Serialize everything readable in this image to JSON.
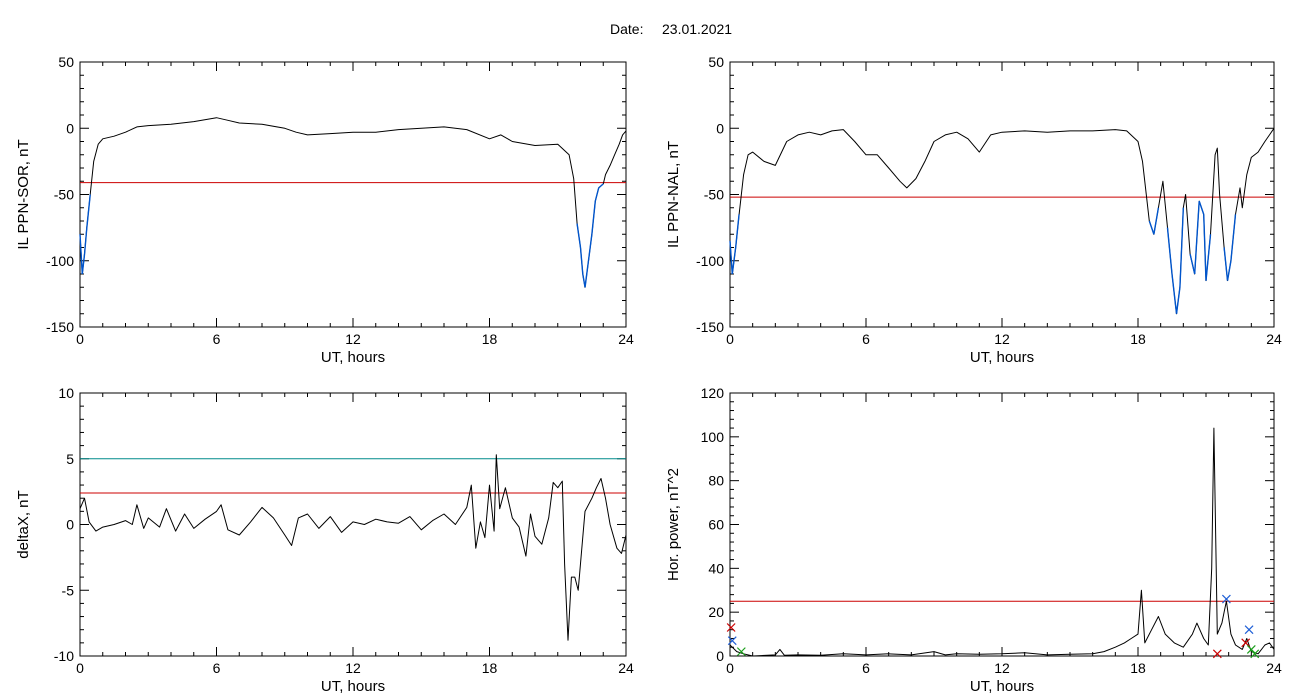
{
  "header": {
    "date_label": "Date:",
    "date_value": "23.01.2021"
  },
  "colors": {
    "trace": "#000000",
    "threshold": "#cc0000",
    "threshold2": "#008b8b",
    "excursion": "#0055cc",
    "marker_red": "#cc0000",
    "marker_blue": "#1f5fd6",
    "marker_green": "#1a9e1a"
  },
  "chart_data": [
    {
      "type": "line",
      "xlabel": "UT, hours",
      "ylabel": "IL PPN-SOR, nT",
      "xlim": [
        0,
        24
      ],
      "ylim": [
        -150,
        50
      ],
      "xticks": [
        0,
        6,
        12,
        18,
        24
      ],
      "yticks": [
        50,
        0,
        -50,
        -100,
        -150
      ],
      "thresholds": [
        {
          "value": -41,
          "color": "red"
        }
      ],
      "highlight_below_threshold": true,
      "series": [
        {
          "points": [
            [
              0,
              -80
            ],
            [
              0.1,
              -110
            ],
            [
              0.2,
              -95
            ],
            [
              0.3,
              -75
            ],
            [
              0.45,
              -50
            ],
            [
              0.6,
              -25
            ],
            [
              0.8,
              -12
            ],
            [
              1.0,
              -8
            ],
            [
              1.5,
              -6
            ],
            [
              2.0,
              -3
            ],
            [
              2.5,
              1
            ],
            [
              3.0,
              2
            ],
            [
              4.0,
              3
            ],
            [
              5.0,
              5
            ],
            [
              6.0,
              8
            ],
            [
              6.5,
              6
            ],
            [
              7.0,
              4
            ],
            [
              8.0,
              3
            ],
            [
              9.0,
              0
            ],
            [
              9.5,
              -3
            ],
            [
              10.0,
              -5
            ],
            [
              11.0,
              -4
            ],
            [
              12.0,
              -3
            ],
            [
              13.0,
              -3
            ],
            [
              14.0,
              -1
            ],
            [
              15.0,
              0
            ],
            [
              16.0,
              1
            ],
            [
              17.0,
              -1
            ],
            [
              18.0,
              -8
            ],
            [
              18.5,
              -5
            ],
            [
              19.0,
              -10
            ],
            [
              20.0,
              -13
            ],
            [
              21.0,
              -12
            ],
            [
              21.5,
              -20
            ],
            [
              21.7,
              -38
            ],
            [
              21.85,
              -72
            ],
            [
              22.0,
              -90
            ],
            [
              22.1,
              -110
            ],
            [
              22.2,
              -120
            ],
            [
              22.35,
              -100
            ],
            [
              22.5,
              -80
            ],
            [
              22.65,
              -55
            ],
            [
              22.8,
              -45
            ],
            [
              23.0,
              -42
            ],
            [
              23.1,
              -35
            ],
            [
              23.3,
              -28
            ],
            [
              23.5,
              -20
            ],
            [
              23.7,
              -12
            ],
            [
              23.85,
              -5
            ],
            [
              24.0,
              -2
            ]
          ]
        }
      ]
    },
    {
      "type": "line",
      "xlabel": "UT, hours",
      "ylabel": "IL PPN-NAL, nT",
      "xlim": [
        0,
        24
      ],
      "ylim": [
        -150,
        50
      ],
      "xticks": [
        0,
        6,
        12,
        18,
        24
      ],
      "yticks": [
        50,
        0,
        -50,
        -100,
        -150
      ],
      "thresholds": [
        {
          "value": -52,
          "color": "red"
        }
      ],
      "highlight_below_threshold": true,
      "series": [
        {
          "points": [
            [
              0,
              -85
            ],
            [
              0.1,
              -110
            ],
            [
              0.25,
              -90
            ],
            [
              0.4,
              -65
            ],
            [
              0.6,
              -35
            ],
            [
              0.8,
              -20
            ],
            [
              1.0,
              -18
            ],
            [
              1.5,
              -25
            ],
            [
              2.0,
              -28
            ],
            [
              2.5,
              -10
            ],
            [
              3.0,
              -5
            ],
            [
              3.5,
              -3
            ],
            [
              4.0,
              -5
            ],
            [
              4.5,
              -2
            ],
            [
              5.0,
              -1
            ],
            [
              5.5,
              -10
            ],
            [
              6.0,
              -20
            ],
            [
              6.5,
              -20
            ],
            [
              7.0,
              -30
            ],
            [
              7.5,
              -40
            ],
            [
              7.8,
              -45
            ],
            [
              8.2,
              -38
            ],
            [
              8.6,
              -25
            ],
            [
              9.0,
              -10
            ],
            [
              9.5,
              -5
            ],
            [
              10.0,
              -3
            ],
            [
              10.5,
              -8
            ],
            [
              11.0,
              -18
            ],
            [
              11.5,
              -5
            ],
            [
              12.0,
              -3
            ],
            [
              13.0,
              -2
            ],
            [
              14.0,
              -3
            ],
            [
              15.0,
              -2
            ],
            [
              16.0,
              -2
            ],
            [
              17.0,
              -1
            ],
            [
              17.5,
              -2
            ],
            [
              18.0,
              -10
            ],
            [
              18.2,
              -25
            ],
            [
              18.5,
              -70
            ],
            [
              18.7,
              -80
            ],
            [
              18.9,
              -60
            ],
            [
              19.1,
              -40
            ],
            [
              19.3,
              -75
            ],
            [
              19.5,
              -110
            ],
            [
              19.7,
              -140
            ],
            [
              19.85,
              -120
            ],
            [
              20.0,
              -60
            ],
            [
              20.1,
              -50
            ],
            [
              20.3,
              -95
            ],
            [
              20.5,
              -110
            ],
            [
              20.7,
              -55
            ],
            [
              20.9,
              -65
            ],
            [
              21.0,
              -115
            ],
            [
              21.2,
              -80
            ],
            [
              21.4,
              -20
            ],
            [
              21.5,
              -15
            ],
            [
              21.6,
              -50
            ],
            [
              21.8,
              -90
            ],
            [
              21.95,
              -115
            ],
            [
              22.1,
              -100
            ],
            [
              22.3,
              -65
            ],
            [
              22.5,
              -45
            ],
            [
              22.6,
              -60
            ],
            [
              22.8,
              -35
            ],
            [
              23.0,
              -22
            ],
            [
              23.3,
              -18
            ],
            [
              23.6,
              -10
            ],
            [
              23.8,
              -5
            ],
            [
              24.0,
              0
            ]
          ]
        }
      ]
    },
    {
      "type": "line",
      "xlabel": "UT, hours",
      "ylabel": "deltaX, nT",
      "xlim": [
        0,
        24
      ],
      "ylim": [
        -10,
        10
      ],
      "xticks": [
        0,
        6,
        12,
        18,
        24
      ],
      "yticks": [
        10,
        5,
        0,
        -5,
        -10
      ],
      "thresholds": [
        {
          "value": 5,
          "color": "teal"
        },
        {
          "value": 2.4,
          "color": "red"
        }
      ],
      "series": [
        {
          "points": [
            [
              0,
              1.2
            ],
            [
              0.2,
              2.0
            ],
            [
              0.4,
              0.2
            ],
            [
              0.7,
              -0.5
            ],
            [
              1.0,
              -0.2
            ],
            [
              1.5,
              0
            ],
            [
              2.0,
              0.3
            ],
            [
              2.3,
              0
            ],
            [
              2.5,
              1.5
            ],
            [
              2.8,
              -0.3
            ],
            [
              3.0,
              0.5
            ],
            [
              3.5,
              -0.2
            ],
            [
              3.8,
              1.2
            ],
            [
              4.2,
              -0.5
            ],
            [
              4.6,
              0.8
            ],
            [
              5.0,
              -0.3
            ],
            [
              5.5,
              0.4
            ],
            [
              6.0,
              1.0
            ],
            [
              6.2,
              1.5
            ],
            [
              6.5,
              -0.4
            ],
            [
              7.0,
              -0.8
            ],
            [
              7.5,
              0.2
            ],
            [
              8.0,
              1.3
            ],
            [
              8.5,
              0.5
            ],
            [
              9.0,
              -0.8
            ],
            [
              9.3,
              -1.6
            ],
            [
              9.6,
              0.5
            ],
            [
              10.0,
              0.8
            ],
            [
              10.5,
              -0.3
            ],
            [
              11.0,
              0.6
            ],
            [
              11.5,
              -0.6
            ],
            [
              12.0,
              0.2
            ],
            [
              12.5,
              0
            ],
            [
              13.0,
              0.4
            ],
            [
              13.5,
              0.2
            ],
            [
              14.0,
              0.1
            ],
            [
              14.5,
              0.6
            ],
            [
              15.0,
              -0.4
            ],
            [
              15.5,
              0.3
            ],
            [
              16.0,
              0.8
            ],
            [
              16.5,
              0
            ],
            [
              17.0,
              1.3
            ],
            [
              17.2,
              3.0
            ],
            [
              17.4,
              -1.8
            ],
            [
              17.6,
              0.2
            ],
            [
              17.8,
              -1.0
            ],
            [
              18.0,
              3.0
            ],
            [
              18.2,
              -0.5
            ],
            [
              18.3,
              5.3
            ],
            [
              18.45,
              1.2
            ],
            [
              18.7,
              2.8
            ],
            [
              19.0,
              0.5
            ],
            [
              19.3,
              -0.2
            ],
            [
              19.6,
              -2.4
            ],
            [
              19.8,
              0.8
            ],
            [
              20.0,
              -0.9
            ],
            [
              20.3,
              -1.5
            ],
            [
              20.6,
              0.5
            ],
            [
              20.8,
              3.2
            ],
            [
              21.0,
              2.8
            ],
            [
              21.2,
              3.3
            ],
            [
              21.3,
              -3.0
            ],
            [
              21.45,
              -8.8
            ],
            [
              21.6,
              -4.0
            ],
            [
              21.75,
              -4.0
            ],
            [
              21.9,
              -5.0
            ],
            [
              22.05,
              -2.0
            ],
            [
              22.2,
              1.0
            ],
            [
              22.5,
              2.0
            ],
            [
              22.7,
              2.8
            ],
            [
              22.9,
              3.5
            ],
            [
              23.1,
              2.0
            ],
            [
              23.3,
              0
            ],
            [
              23.6,
              -1.8
            ],
            [
              23.8,
              -2.2
            ],
            [
              24.0,
              -0.8
            ]
          ]
        }
      ]
    },
    {
      "type": "line",
      "xlabel": "UT, hours",
      "ylabel": "Hor. power, nT^2",
      "xlim": [
        0,
        24
      ],
      "ylim": [
        0,
        120
      ],
      "xticks": [
        0,
        6,
        12,
        18,
        24
      ],
      "yticks": [
        120,
        100,
        80,
        60,
        40,
        20,
        0
      ],
      "thresholds": [
        {
          "value": 25,
          "color": "red"
        }
      ],
      "series": [
        {
          "points": [
            [
              0,
              5
            ],
            [
              0.3,
              2
            ],
            [
              0.6,
              1
            ],
            [
              1.0,
              0
            ],
            [
              2.0,
              0.5
            ],
            [
              2.2,
              3
            ],
            [
              2.4,
              0.3
            ],
            [
              3.0,
              0.5
            ],
            [
              4.0,
              0.3
            ],
            [
              5.0,
              1
            ],
            [
              6.0,
              0.5
            ],
            [
              7.0,
              1
            ],
            [
              8.0,
              0.5
            ],
            [
              9.0,
              2
            ],
            [
              9.5,
              0.5
            ],
            [
              10.0,
              1
            ],
            [
              11.0,
              0.8
            ],
            [
              12.0,
              1
            ],
            [
              13.0,
              1.5
            ],
            [
              14.0,
              0.5
            ],
            [
              15.0,
              0.8
            ],
            [
              16.0,
              1
            ],
            [
              16.5,
              2
            ],
            [
              17.0,
              4
            ],
            [
              17.4,
              6
            ],
            [
              17.7,
              8
            ],
            [
              18.0,
              10
            ],
            [
              18.15,
              30
            ],
            [
              18.3,
              6
            ],
            [
              18.6,
              12
            ],
            [
              18.9,
              18
            ],
            [
              19.2,
              10
            ],
            [
              19.6,
              6
            ],
            [
              20.0,
              4
            ],
            [
              20.4,
              10
            ],
            [
              20.6,
              15
            ],
            [
              20.9,
              8
            ],
            [
              21.1,
              5
            ],
            [
              21.25,
              40
            ],
            [
              21.35,
              104
            ],
            [
              21.5,
              10
            ],
            [
              21.7,
              15
            ],
            [
              21.8,
              20
            ],
            [
              21.9,
              25
            ],
            [
              22.1,
              10
            ],
            [
              22.3,
              5
            ],
            [
              22.6,
              3
            ],
            [
              22.8,
              8
            ],
            [
              23.0,
              2
            ],
            [
              23.3,
              1
            ],
            [
              23.6,
              5
            ],
            [
              23.8,
              6
            ],
            [
              24.0,
              3
            ]
          ]
        }
      ],
      "markers": [
        {
          "x": 0.05,
          "y": 13,
          "color": "red"
        },
        {
          "x": 0.1,
          "y": 7,
          "color": "blue"
        },
        {
          "x": 0.5,
          "y": 2,
          "color": "green"
        },
        {
          "x": 21.5,
          "y": 1,
          "color": "red"
        },
        {
          "x": 21.9,
          "y": 26,
          "color": "blue"
        },
        {
          "x": 22.75,
          "y": 6,
          "color": "red"
        },
        {
          "x": 22.9,
          "y": 12,
          "color": "blue"
        },
        {
          "x": 23.0,
          "y": 3,
          "color": "green"
        },
        {
          "x": 23.15,
          "y": 1,
          "color": "green"
        }
      ]
    }
  ]
}
